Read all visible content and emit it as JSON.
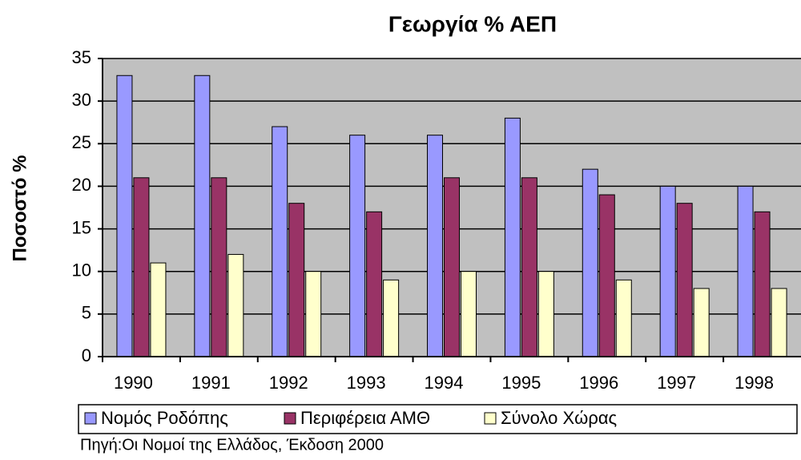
{
  "chart_data": {
    "type": "bar",
    "title": "Γεωργία % ΑΕΠ",
    "y_label": "Ποσοστό %",
    "source": "Πηγή:Οι Νομοί της Ελλάδος, Έκδοση 2000",
    "categories": [
      "1990",
      "1991",
      "1992",
      "1993",
      "1994",
      "1995",
      "1996",
      "1997",
      "1998"
    ],
    "series": [
      {
        "name": "Νομός Ροδόπης",
        "color": "#9999ff",
        "values": [
          33,
          33,
          27,
          26,
          26,
          28,
          22,
          20,
          20
        ]
      },
      {
        "name": "Περιφέρεια ΑΜΘ",
        "color": "#993366",
        "values": [
          21,
          21,
          18,
          17,
          21,
          21,
          19,
          18,
          17
        ]
      },
      {
        "name": "Σύνολο Χώρας",
        "color": "#ffffcc",
        "values": [
          11,
          12,
          10,
          9,
          10,
          10,
          9,
          8,
          8
        ]
      }
    ],
    "ylim": [
      0,
      35
    ],
    "yticks": [
      0,
      5,
      10,
      15,
      20,
      25,
      30,
      35
    ],
    "grid": true,
    "legend": "bottom"
  }
}
